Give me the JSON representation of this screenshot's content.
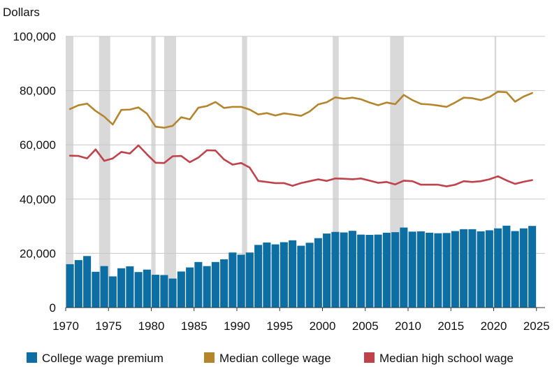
{
  "chart_data": {
    "type": "bar",
    "unit_label": "Dollars",
    "x_ticks": [
      1970,
      1975,
      1980,
      1985,
      1990,
      1995,
      2000,
      2005,
      2010,
      2015,
      2020,
      2025
    ],
    "y_ticks": [
      0,
      20000,
      40000,
      60000,
      80000,
      100000
    ],
    "y_tick_labels": [
      "0",
      "20,000",
      "40,000",
      "60,000",
      "80,000",
      "100,000"
    ],
    "xlim": [
      1970,
      2026
    ],
    "ylim": [
      0,
      100000
    ],
    "grid": "horizontal",
    "legend_position": "bottom",
    "recession_periods": [
      [
        1970.0,
        1970.9
      ],
      [
        1973.9,
        1975.2
      ],
      [
        1980.0,
        1980.5
      ],
      [
        1981.5,
        1982.9
      ],
      [
        1990.6,
        1991.2
      ],
      [
        2001.2,
        2001.9
      ],
      [
        2007.9,
        2009.5
      ],
      [
        2020.1,
        2020.3
      ]
    ],
    "years": [
      1970,
      1971,
      1972,
      1973,
      1974,
      1975,
      1976,
      1977,
      1978,
      1979,
      1980,
      1981,
      1982,
      1983,
      1984,
      1985,
      1986,
      1987,
      1988,
      1989,
      1990,
      1991,
      1992,
      1993,
      1994,
      1995,
      1996,
      1997,
      1998,
      1999,
      2000,
      2001,
      2002,
      2003,
      2004,
      2005,
      2006,
      2007,
      2008,
      2009,
      2010,
      2011,
      2012,
      2013,
      2014,
      2015,
      2016,
      2017,
      2018,
      2019,
      2020,
      2021,
      2022,
      2023,
      2024
    ],
    "series": [
      {
        "name": "College wage premium",
        "kind": "bar",
        "color": "#0d6ea3",
        "values": [
          16000,
          17500,
          19000,
          13200,
          15300,
          11500,
          14500,
          15200,
          13100,
          14000,
          12100,
          12000,
          10700,
          13300,
          14800,
          16800,
          15300,
          16800,
          17800,
          20300,
          19500,
          20300,
          23100,
          24000,
          23300,
          24100,
          24800,
          22800,
          23900,
          25600,
          27300,
          27900,
          27700,
          28300,
          26900,
          26800,
          26900,
          27600,
          27800,
          29500,
          28000,
          28100,
          27600,
          27400,
          27500,
          28200,
          28900,
          28900,
          28100,
          28500,
          29200,
          30200,
          28200,
          29200,
          30100
        ]
      },
      {
        "name": "Median college wage",
        "kind": "line",
        "color": "#b5852e",
        "values": [
          73200,
          74600,
          75200,
          72500,
          70400,
          67500,
          72900,
          73000,
          73800,
          71500,
          66700,
          66300,
          67000,
          70200,
          69400,
          73700,
          74300,
          75800,
          73600,
          74000,
          74000,
          73000,
          71200,
          71700,
          70800,
          71600,
          71200,
          70700,
          72300,
          74900,
          75700,
          77500,
          77000,
          77400,
          76800,
          75600,
          74600,
          75600,
          75000,
          78400,
          76500,
          75100,
          74900,
          74500,
          74000,
          75600,
          77400,
          77200,
          76500,
          77600,
          79600,
          79400,
          75900,
          77800,
          79100
        ]
      },
      {
        "name": "Median high school wage",
        "kind": "line",
        "color": "#c0434b",
        "values": [
          56000,
          55900,
          55000,
          58300,
          54100,
          55000,
          57400,
          56800,
          59800,
          56500,
          53400,
          53300,
          55800,
          55900,
          53600,
          55300,
          58000,
          57900,
          54600,
          52700,
          53300,
          51600,
          46700,
          46300,
          45900,
          45900,
          44900,
          45900,
          46600,
          47300,
          46700,
          47600,
          47500,
          47300,
          47600,
          46800,
          46000,
          46300,
          45400,
          46800,
          46600,
          45300,
          45300,
          45300,
          44700,
          45300,
          46600,
          46300,
          46600,
          47300,
          48400,
          46900,
          45600,
          46400,
          47000
        ]
      }
    ]
  }
}
